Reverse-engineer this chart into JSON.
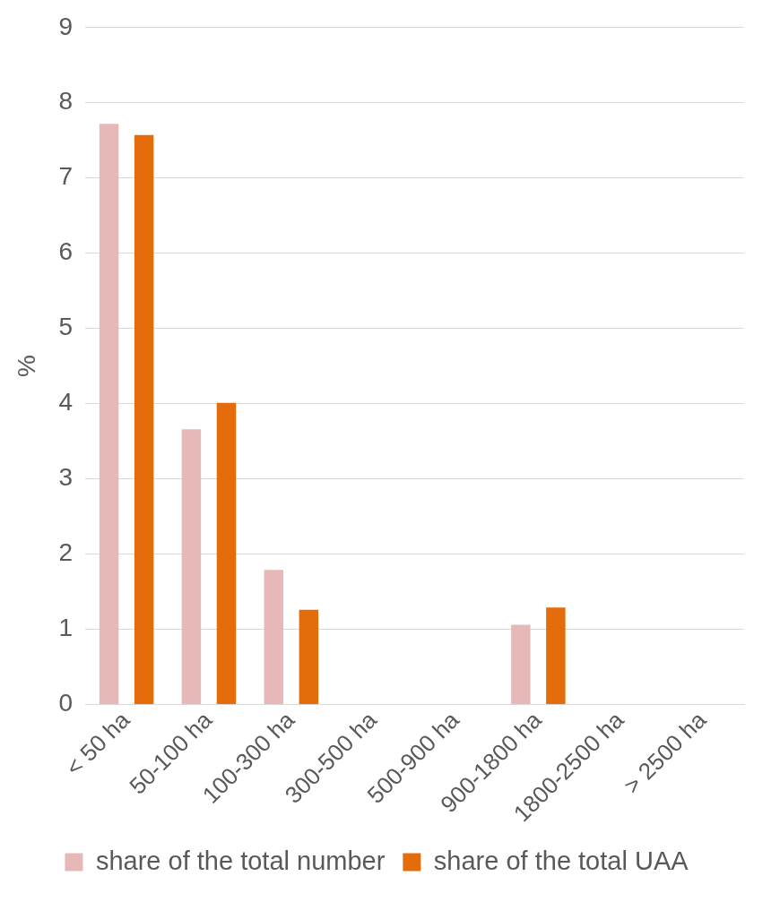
{
  "chart_data": {
    "type": "bar",
    "ylabel": "%",
    "categories": [
      "< 50 ha",
      "50-100 ha",
      "100-300 ha",
      "300-500 ha",
      "500-900 ha",
      "900-1800 ha",
      "1800-2500 ha",
      "> 2500 ha"
    ],
    "series": [
      {
        "name": "share of the total number",
        "color": "#e6b9b8",
        "values": [
          7.72,
          3.66,
          1.79,
          0,
          0,
          1.06,
          0,
          0
        ]
      },
      {
        "name": "share of the total UAA",
        "color": "#e46c0a",
        "values": [
          7.57,
          4.01,
          1.26,
          0,
          0,
          1.29,
          0,
          0
        ]
      }
    ],
    "ylim": [
      0,
      9
    ],
    "yticks": [
      0,
      1,
      2,
      3,
      4,
      5,
      6,
      7,
      8,
      9
    ],
    "grid": "y",
    "legend": "bottom"
  }
}
